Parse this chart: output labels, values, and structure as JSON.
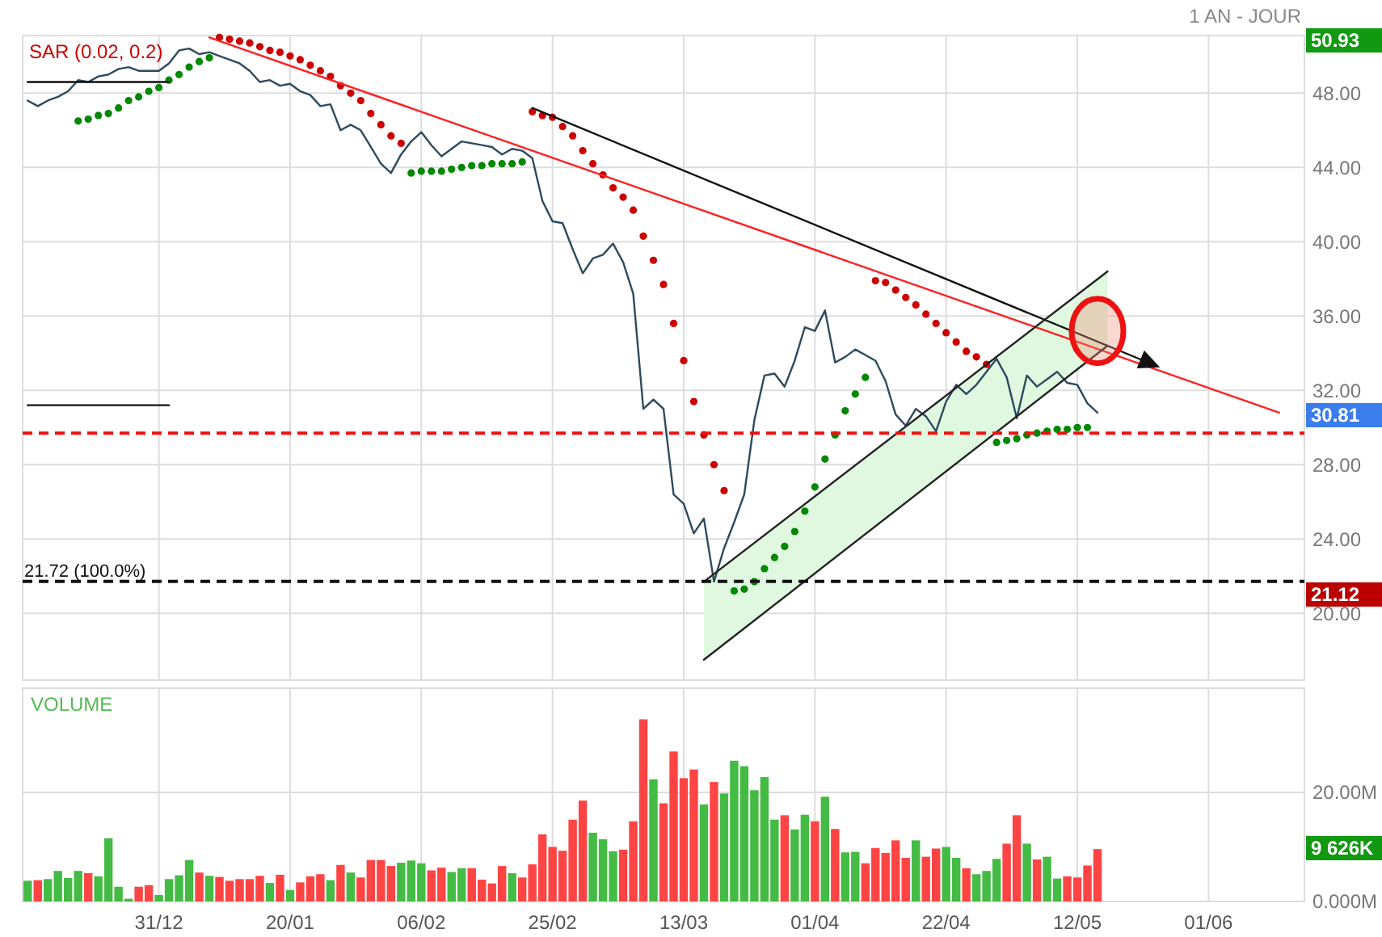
{
  "chart_data": [
    {
      "type": "line",
      "ylim": [
        16.4,
        51.1
      ],
      "grid": true,
      "legend": "top left",
      "yticks": [
        {
          "value": 20,
          "label": "20.00"
        },
        {
          "value": 24,
          "label": "24.00"
        },
        {
          "value": 28,
          "label": "28.00"
        },
        {
          "value": 32,
          "label": "32.00"
        },
        {
          "value": 36,
          "label": "36.00"
        },
        {
          "value": 40,
          "label": "40.00"
        },
        {
          "value": 44,
          "label": "44.00"
        },
        {
          "value": 48,
          "label": "48.00"
        }
      ],
      "annotations": [
        "1 AN - JOUR",
        "50.93",
        "30.81",
        "21.12"
      ],
      "ref_lines": [
        {
          "axis": "y",
          "value": 29.7,
          "color": "#ee1111",
          "line_style": "dashed"
        },
        {
          "axis": "y",
          "value": 21.72,
          "label": "21.72 (100.0%)",
          "color": "#111111",
          "line_style": "dashed"
        }
      ],
      "series": [
        {
          "color": "#2e4a5e",
          "values": [
            47.6,
            47.3,
            47.6,
            47.8,
            48.1,
            48.7,
            48.6,
            48.9,
            49.0,
            49.3,
            49.4,
            49.2,
            49.2,
            49.2,
            49.6,
            50.3,
            50.4,
            50.1,
            50.2,
            50.0,
            49.8,
            49.6,
            49.2,
            48.6,
            48.7,
            48.4,
            48.5,
            48.1,
            47.9,
            47.3,
            47.4,
            46.0,
            46.3,
            46.0,
            45.1,
            44.2,
            43.7,
            44.7,
            45.4,
            45.9,
            45.2,
            44.6,
            45.0,
            45.4,
            45.3,
            45.2,
            45.1,
            44.7,
            45.0,
            44.9,
            44.5,
            42.2,
            41.1,
            41.0,
            39.6,
            38.3,
            39.1,
            39.3,
            39.9,
            38.9,
            37.2,
            31.0,
            31.5,
            31.0,
            26.4,
            25.9,
            24.3,
            25.1,
            21.7,
            23.5,
            24.9,
            26.4,
            30.4,
            32.8,
            32.9,
            32.2,
            33.6,
            35.4,
            35.2,
            36.3,
            33.5,
            33.8,
            34.2,
            33.9,
            33.6,
            32.5,
            30.7,
            30.1,
            31.0,
            30.6,
            29.8,
            31.4,
            32.3,
            31.8,
            32.3,
            33.0,
            33.7,
            32.7,
            30.5,
            32.8,
            32.2,
            32.6,
            33.0,
            32.4,
            32.3,
            31.3,
            30.8,
            null,
            null,
            null,
            null,
            null,
            null,
            null,
            null,
            null,
            null,
            null,
            null,
            null,
            null,
            null,
            null,
            null,
            null,
            null,
            null
          ]
        },
        {
          "type": "scatter",
          "name": "SAR (0.02, 0.2)",
          "color": "#cc0000",
          "values": [
            null,
            null,
            null,
            null,
            null,
            46.5,
            46.6,
            46.8,
            46.9,
            47.2,
            47.6,
            47.8,
            48.1,
            48.3,
            48.7,
            49.0,
            49.4,
            49.7,
            49.9,
            51.0,
            50.9,
            50.8,
            50.7,
            50.5,
            50.3,
            50.2,
            50.0,
            49.8,
            49.5,
            49.2,
            48.9,
            48.4,
            48.0,
            47.6,
            46.9,
            46.3,
            45.7,
            45.3,
            43.7,
            43.8,
            43.8,
            43.8,
            43.9,
            44.0,
            44.1,
            44.1,
            44.2,
            44.2,
            44.2,
            44.3,
            47.0,
            46.8,
            46.7,
            46.2,
            45.7,
            44.9,
            44.2,
            43.6,
            42.9,
            42.4,
            41.7,
            40.3,
            39.0,
            37.7,
            35.6,
            33.6,
            31.4,
            29.6,
            28.0,
            26.6,
            21.2,
            21.3,
            21.7,
            22.4,
            23.0,
            23.6,
            24.4,
            25.5,
            26.8,
            28.3,
            29.6,
            30.9,
            31.8,
            32.7,
            37.9,
            37.8,
            37.4,
            37.0,
            36.6,
            36.1,
            35.6,
            35.1,
            34.6,
            34.1,
            33.8,
            33.4,
            29.2,
            29.3,
            29.4,
            29.6,
            29.7,
            29.8,
            29.9,
            29.9,
            30.0,
            30.0,
            null,
            null,
            null,
            null,
            null,
            null,
            null,
            null,
            null,
            null,
            null,
            null,
            null,
            null,
            null,
            null,
            null,
            null,
            null,
            null,
            null
          ],
          "colors": [
            null,
            null,
            null,
            null,
            null,
            "#008800",
            "#008800",
            "#008800",
            "#008800",
            "#008800",
            "#008800",
            "#008800",
            "#008800",
            "#008800",
            "#008800",
            "#008800",
            "#008800",
            "#008800",
            "#008800",
            "#cc0000",
            "#cc0000",
            "#cc0000",
            "#cc0000",
            "#cc0000",
            "#cc0000",
            "#cc0000",
            "#cc0000",
            "#cc0000",
            "#cc0000",
            "#cc0000",
            "#cc0000",
            "#cc0000",
            "#cc0000",
            "#cc0000",
            "#cc0000",
            "#cc0000",
            "#cc0000",
            "#cc0000",
            "#008800",
            "#008800",
            "#008800",
            "#008800",
            "#008800",
            "#008800",
            "#008800",
            "#008800",
            "#008800",
            "#008800",
            "#008800",
            "#008800",
            "#cc0000",
            "#cc0000",
            "#cc0000",
            "#cc0000",
            "#cc0000",
            "#cc0000",
            "#cc0000",
            "#cc0000",
            "#cc0000",
            "#cc0000",
            "#cc0000",
            "#cc0000",
            "#cc0000",
            "#cc0000",
            "#cc0000",
            "#cc0000",
            "#cc0000",
            "#cc0000",
            "#cc0000",
            "#cc0000",
            "#008800",
            "#008800",
            "#008800",
            "#008800",
            "#008800",
            "#008800",
            "#008800",
            "#008800",
            "#008800",
            "#008800",
            "#008800",
            "#008800",
            "#008800",
            "#008800",
            "#cc0000",
            "#cc0000",
            "#cc0000",
            "#cc0000",
            "#cc0000",
            "#cc0000",
            "#cc0000",
            "#cc0000",
            "#cc0000",
            "#cc0000",
            "#cc0000",
            "#cc0000",
            "#008800",
            "#008800",
            "#008800",
            "#008800",
            "#008800",
            "#008800",
            "#008800",
            "#008800",
            "#008800",
            "#008800",
            null,
            null,
            null,
            null,
            null,
            null,
            null,
            null,
            null,
            null,
            null,
            null,
            null,
            null,
            null,
            null,
            null,
            null,
            null,
            null,
            null
          ]
        },
        {
          "type": "line",
          "color": "#ff2020",
          "values": [
            null,
            null,
            null,
            null,
            null,
            null,
            null,
            null,
            null,
            null,
            null,
            null,
            null,
            null,
            null,
            null,
            null,
            null,
            51.0,
            null,
            null,
            null,
            null,
            null,
            null,
            null,
            null,
            null,
            null,
            null,
            null,
            null,
            null,
            null,
            null,
            null,
            null,
            null,
            null,
            null,
            null,
            null,
            null,
            null,
            null,
            null,
            null,
            null,
            null,
            null,
            null,
            null,
            null,
            null,
            null,
            null,
            null,
            null,
            null,
            null,
            null,
            null,
            null,
            null,
            null,
            null,
            null,
            null,
            null,
            null,
            null,
            null,
            null,
            null,
            null,
            null,
            null,
            null,
            null,
            null,
            null,
            null,
            null,
            null,
            null,
            null,
            null,
            null,
            null,
            null,
            null,
            null,
            null,
            null,
            null,
            null,
            null,
            null,
            null,
            null,
            null,
            null,
            null,
            null,
            null,
            null,
            null,
            null,
            null,
            null,
            null,
            null,
            null,
            null,
            null,
            null,
            null,
            null,
            null,
            null,
            null,
            null,
            null,
            null,
            30.8,
            null,
            null
          ]
        },
        {
          "type": "line",
          "color": "#111111",
          "values": [
            null,
            null,
            null,
            null,
            null,
            null,
            null,
            null,
            null,
            null,
            null,
            null,
            null,
            null,
            null,
            null,
            null,
            null,
            null,
            null,
            null,
            null,
            null,
            null,
            null,
            null,
            null,
            null,
            null,
            null,
            null,
            null,
            null,
            null,
            null,
            null,
            null,
            null,
            null,
            null,
            null,
            null,
            null,
            null,
            null,
            null,
            null,
            null,
            null,
            null,
            47.2,
            null,
            null,
            null,
            null,
            null,
            null,
            null,
            null,
            null,
            null,
            null,
            null,
            null,
            null,
            null,
            null,
            null,
            null,
            null,
            null,
            null,
            null,
            null,
            null,
            null,
            null,
            null,
            null,
            null,
            null,
            null,
            null,
            null,
            null,
            null,
            null,
            null,
            null,
            null,
            null,
            null,
            null,
            null,
            null,
            null,
            null,
            null,
            null,
            null,
            null,
            null,
            null,
            null,
            null,
            null,
            null,
            null,
            null,
            null,
            null,
            33.5,
            null,
            null,
            null,
            null,
            null,
            null,
            null,
            null,
            null,
            null,
            null,
            null,
            null,
            null,
            null
          ]
        },
        {
          "type": "line",
          "color": "#222222",
          "values": [
            null,
            null,
            null,
            null,
            null,
            null,
            null,
            null,
            null,
            null,
            null,
            null,
            null,
            null,
            null,
            null,
            null,
            null,
            null,
            null,
            null,
            null,
            null,
            null,
            null,
            null,
            null,
            null,
            null,
            null,
            null,
            null,
            null,
            null,
            null,
            null,
            null,
            null,
            null,
            null,
            null,
            null,
            null,
            null,
            null,
            null,
            null,
            null,
            null,
            null,
            null,
            null,
            null,
            null,
            null,
            null,
            null,
            null,
            null,
            null,
            null,
            null,
            null,
            null,
            null,
            null,
            null,
            21.7,
            null,
            null,
            null,
            null,
            null,
            null,
            null,
            null,
            null,
            null,
            null,
            null,
            null,
            null,
            null,
            null,
            null,
            null,
            null,
            null,
            null,
            null,
            null,
            null,
            null,
            null,
            null,
            null,
            null,
            null,
            null,
            null,
            null,
            null,
            null,
            null,
            null,
            null,
            null,
            38.4,
            null,
            null,
            null,
            null,
            null,
            null,
            null,
            null,
            null,
            null,
            null,
            null,
            null,
            null,
            null,
            null,
            null,
            null,
            null
          ]
        },
        {
          "type": "line",
          "color": "#222222",
          "values": [
            null,
            null,
            null,
            null,
            null,
            null,
            null,
            null,
            null,
            null,
            null,
            null,
            null,
            null,
            null,
            null,
            null,
            null,
            null,
            null,
            null,
            null,
            null,
            null,
            null,
            null,
            null,
            null,
            null,
            null,
            null,
            null,
            null,
            null,
            null,
            null,
            null,
            null,
            null,
            null,
            null,
            null,
            null,
            null,
            null,
            null,
            null,
            null,
            null,
            null,
            null,
            null,
            null,
            null,
            null,
            null,
            null,
            null,
            null,
            null,
            null,
            null,
            null,
            null,
            null,
            null,
            null,
            17.5,
            null,
            null,
            null,
            null,
            null,
            null,
            null,
            null,
            null,
            null,
            null,
            null,
            null,
            null,
            null,
            null,
            null,
            null,
            null,
            null,
            null,
            null,
            null,
            null,
            null,
            null,
            null,
            null,
            null,
            null,
            null,
            null,
            null,
            null,
            null,
            null,
            null,
            null,
            null,
            34.4,
            null,
            null,
            null,
            null,
            null,
            null,
            null,
            null,
            null,
            null,
            null,
            null,
            null,
            null,
            null,
            null,
            null,
            null,
            null
          ]
        },
        {
          "type": "line",
          "color": "#111111",
          "values": [
            48.6,
            null,
            null,
            null,
            null,
            null,
            null,
            null,
            null,
            null,
            null,
            null,
            null,
            null,
            48.6,
            null,
            null,
            null,
            null,
            null,
            null,
            null,
            null,
            null,
            null,
            null,
            null,
            null,
            null,
            null,
            null,
            null,
            null,
            null,
            null,
            null,
            null,
            null,
            null,
            null,
            null,
            null,
            null,
            null,
            null,
            null,
            null,
            null,
            null,
            null,
            null,
            null,
            null,
            null,
            null,
            null,
            null,
            null,
            null,
            null,
            null,
            null,
            null,
            null,
            null,
            null,
            null,
            null,
            null,
            null,
            null,
            null,
            null,
            null,
            null,
            null,
            null,
            null,
            null,
            null,
            null,
            null,
            null,
            null,
            null,
            null,
            null,
            null,
            null,
            null,
            null,
            null,
            null,
            null,
            null,
            null,
            null,
            null,
            null,
            null,
            null,
            null,
            null,
            null,
            null,
            null,
            null,
            null,
            null,
            null,
            null,
            null,
            null,
            null,
            null,
            null,
            null,
            null,
            null,
            null,
            null,
            null,
            null,
            null,
            null,
            null,
            null
          ]
        },
        {
          "type": "line",
          "color": "#111111",
          "values": [
            31.2,
            null,
            null,
            null,
            null,
            null,
            null,
            null,
            null,
            null,
            null,
            null,
            null,
            null,
            31.2,
            null,
            null,
            null,
            null,
            null,
            null,
            null,
            null,
            null,
            null,
            null,
            null,
            null,
            null,
            null,
            null,
            null,
            null,
            null,
            null,
            null,
            null,
            null,
            null,
            null,
            null,
            null,
            null,
            null,
            null,
            null,
            null,
            null,
            null,
            null,
            null,
            null,
            null,
            null,
            null,
            null,
            null,
            null,
            null,
            null,
            null,
            null,
            null,
            null,
            null,
            null,
            null,
            null,
            null,
            null,
            null,
            null,
            null,
            null,
            null,
            null,
            null,
            null,
            null,
            null,
            null,
            null,
            null,
            null,
            null,
            null,
            null,
            null,
            null,
            null,
            null,
            null,
            null,
            null,
            null,
            null,
            null,
            null,
            null,
            null,
            null,
            null,
            null,
            null,
            null,
            null,
            null,
            null,
            null,
            null,
            null,
            null,
            null,
            null,
            null,
            null,
            null,
            null,
            null,
            null,
            null,
            null,
            null,
            null,
            null,
            null,
            null
          ]
        }
      ]
    },
    {
      "type": "bar",
      "title": "VOLUME",
      "ylim": [
        0,
        39.1
      ],
      "grid": true,
      "categories": [
        null,
        null,
        null,
        null,
        null,
        null,
        null,
        null,
        null,
        null,
        null,
        null,
        null,
        "31/12",
        null,
        null,
        null,
        null,
        null,
        null,
        null,
        null,
        null,
        null,
        null,
        null,
        "20/01",
        null,
        null,
        null,
        null,
        null,
        null,
        null,
        null,
        null,
        null,
        null,
        null,
        "06/02",
        null,
        null,
        null,
        null,
        null,
        null,
        null,
        null,
        null,
        null,
        null,
        null,
        "25/02",
        null,
        null,
        null,
        null,
        null,
        null,
        null,
        null,
        null,
        null,
        null,
        null,
        "13/03",
        null,
        null,
        null,
        null,
        null,
        null,
        null,
        null,
        null,
        null,
        null,
        null,
        "01/04",
        null,
        null,
        null,
        null,
        null,
        null,
        null,
        null,
        null,
        null,
        null,
        null,
        "22/04",
        null,
        null,
        null,
        null,
        null,
        null,
        null,
        null,
        null,
        null,
        null,
        null,
        "12/05",
        null,
        null,
        null,
        null,
        null,
        null,
        null,
        null,
        null,
        null,
        null,
        null,
        "01/06",
        null,
        null,
        null,
        null,
        null,
        null,
        null,
        null,
        null
      ],
      "yticks": [
        {
          "value": 0,
          "label": "0.000M"
        },
        {
          "value": 20,
          "label": "20.00M"
        }
      ],
      "annotations": [
        "9 626K"
      ],
      "values": [
        3.8,
        3.9,
        4.1,
        5.6,
        4.3,
        5.6,
        5.2,
        4.6,
        11.6,
        2.7,
        0.5,
        2.7,
        3.0,
        1.2,
        4.1,
        4.8,
        7.6,
        5.3,
        4.7,
        4.5,
        3.8,
        4.1,
        4.1,
        4.7,
        3.4,
        4.9,
        2.1,
        3.5,
        4.6,
        5.0,
        3.9,
        6.7,
        5.3,
        4.4,
        7.6,
        7.6,
        6.5,
        7.1,
        7.5,
        7.0,
        5.7,
        6.2,
        5.4,
        6.1,
        6.1,
        4.0,
        3.3,
        6.5,
        5.2,
        4.4,
        6.8,
        12.3,
        10.0,
        9.3,
        15.0,
        18.5,
        12.6,
        11.4,
        9.2,
        9.5,
        14.7,
        33.4,
        22.4,
        18.0,
        27.5,
        22.6,
        24.2,
        17.8,
        21.9,
        19.8,
        25.8,
        24.8,
        20.4,
        22.8,
        15.0,
        15.8,
        13.2,
        15.9,
        14.7,
        19.2,
        13.3,
        9.0,
        9.1,
        7.0,
        9.8,
        8.9,
        11.2,
        8.0,
        11.2,
        8.2,
        9.7,
        10.0,
        8.0,
        6.1,
        5.0,
        5.6,
        7.8,
        10.6,
        15.8,
        10.6,
        7.7,
        8.2,
        4.2,
        4.6,
        4.4,
        6.6,
        9.6,
        null,
        null,
        null,
        null,
        null,
        null,
        null,
        null,
        null,
        null,
        null,
        null,
        null,
        null,
        null,
        null,
        null,
        null,
        null,
        null
      ],
      "colors": [
        "#44bb44",
        "#ff4444",
        "#44bb44",
        "#44bb44",
        "#44bb44",
        "#44bb44",
        "#ff4444",
        "#44bb44",
        "#44bb44",
        "#44bb44",
        "#44bb44",
        "#ff4444",
        "#ff4444",
        "#44bb44",
        "#44bb44",
        "#44bb44",
        "#44bb44",
        "#ff4444",
        "#44bb44",
        "#ff4444",
        "#ff4444",
        "#ff4444",
        "#ff4444",
        "#ff4444",
        "#44bb44",
        "#ff4444",
        "#44bb44",
        "#ff4444",
        "#ff4444",
        "#ff4444",
        "#44bb44",
        "#ff4444",
        "#44bb44",
        "#ff4444",
        "#ff4444",
        "#ff4444",
        "#ff4444",
        "#44bb44",
        "#44bb44",
        "#44bb44",
        "#ff4444",
        "#ff4444",
        "#44bb44",
        "#44bb44",
        "#ff4444",
        "#ff4444",
        "#ff4444",
        "#ff4444",
        "#44bb44",
        "#ff4444",
        "#ff4444",
        "#ff4444",
        "#ff4444",
        "#ff4444",
        "#ff4444",
        "#ff4444",
        "#44bb44",
        "#44bb44",
        "#44bb44",
        "#ff4444",
        "#ff4444",
        "#ff4444",
        "#44bb44",
        "#ff4444",
        "#ff4444",
        "#ff4444",
        "#ff4444",
        "#44bb44",
        "#ff4444",
        "#44bb44",
        "#44bb44",
        "#44bb44",
        "#44bb44",
        "#44bb44",
        "#44bb44",
        "#ff4444",
        "#44bb44",
        "#44bb44",
        "#ff4444",
        "#44bb44",
        "#ff4444",
        "#44bb44",
        "#44bb44",
        "#ff4444",
        "#ff4444",
        "#ff4444",
        "#ff4444",
        "#ff4444",
        "#44bb44",
        "#ff4444",
        "#ff4444",
        "#44bb44",
        "#44bb44",
        "#ff4444",
        "#44bb44",
        "#44bb44",
        "#44bb44",
        "#ff4444",
        "#ff4444",
        "#44bb44",
        "#ff4444",
        "#44bb44",
        "#44bb44",
        "#ff4444",
        "#ff4444",
        "#ff4444",
        "#ff4444",
        null,
        null,
        null,
        null,
        null,
        null,
        null,
        null,
        null,
        null,
        null,
        null,
        null,
        null,
        null,
        null,
        null,
        null,
        null,
        null
      ]
    }
  ]
}
